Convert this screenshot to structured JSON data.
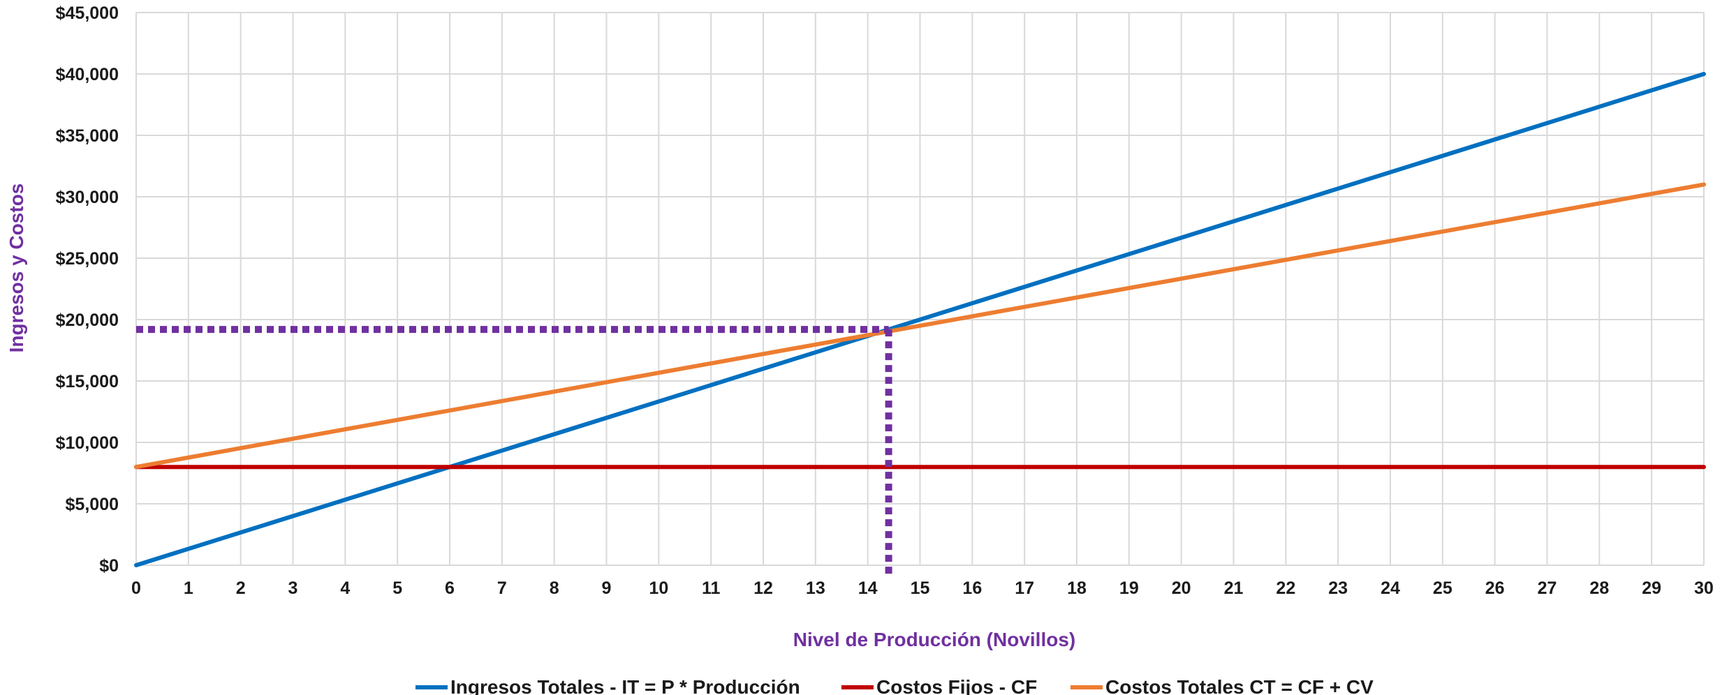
{
  "chart_data": {
    "type": "line",
    "title": "",
    "xlabel": "Nivel de Producción (Novillos)",
    "ylabel": "Ingresos y Costos",
    "xlim": [
      0,
      30
    ],
    "ylim": [
      0,
      45000
    ],
    "x_ticks": [
      0,
      1,
      2,
      3,
      4,
      5,
      6,
      7,
      8,
      9,
      10,
      11,
      12,
      13,
      14,
      15,
      16,
      17,
      18,
      19,
      20,
      21,
      22,
      23,
      24,
      25,
      26,
      27,
      28,
      29,
      30
    ],
    "y_ticks": [
      0,
      5000,
      10000,
      15000,
      20000,
      25000,
      30000,
      35000,
      40000,
      45000
    ],
    "y_tick_labels": [
      "$0",
      "$5,000",
      "$10,000",
      "$15,000",
      "$20,000",
      "$25,000",
      "$30,000",
      "$35,000",
      "$40,000",
      "$45,000"
    ],
    "grid": true,
    "legend_position": "bottom",
    "series": [
      {
        "name": "Ingresos Totales - IT = P * Producción",
        "color": "#0070C0",
        "x": [
          0,
          30
        ],
        "y": [
          0,
          40000
        ]
      },
      {
        "name": "Costos Fijos - CF",
        "color": "#C00000",
        "x": [
          0,
          30
        ],
        "y": [
          8000,
          8000
        ]
      },
      {
        "name": "Costos Totales CT = CF + CV",
        "color": "#ED7D31",
        "x": [
          0,
          30
        ],
        "y": [
          8000,
          31000
        ]
      }
    ],
    "annotations": {
      "break_even": {
        "x": 14.4,
        "y": 19200,
        "color": "#7030A0",
        "style": "dotted"
      }
    },
    "axis_title_color": "#7030A0",
    "grid_color": "#D9D9D9"
  }
}
